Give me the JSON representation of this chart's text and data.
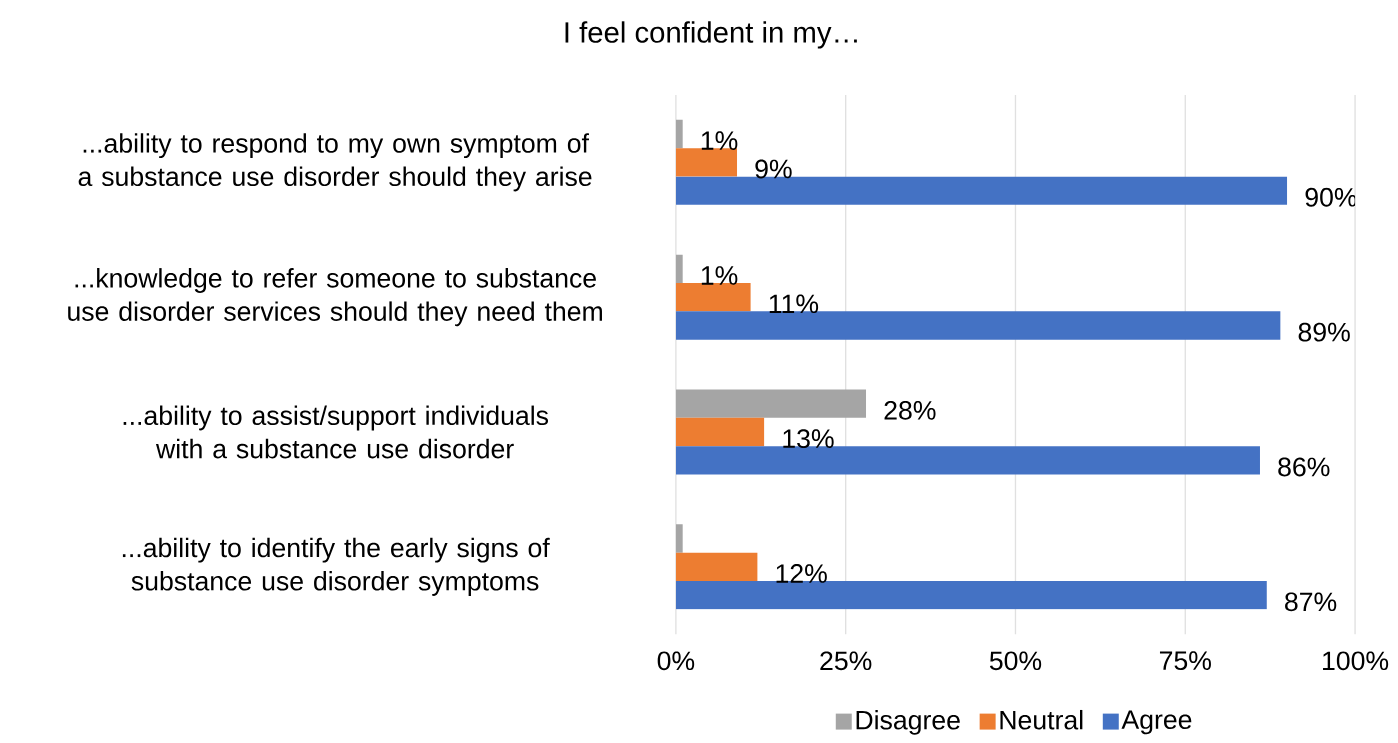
{
  "chart_data": {
    "type": "bar",
    "orientation": "horizontal",
    "title": "I feel confident in my…",
    "categories": [
      "...ability to respond to my own symptom of a substance use disorder should they arise",
      "...knowledge to refer someone to substance use disorder services should they need them",
      "...ability to assist/support individuals with a substance use disorder",
      "...ability to identify the early signs of substance use disorder symptoms"
    ],
    "series": [
      {
        "name": "Disagree",
        "color": "#a5a5a5",
        "values": [
          1,
          1,
          28,
          1
        ],
        "value_labels": [
          "1%",
          "1%",
          "28%",
          null
        ]
      },
      {
        "name": "Neutral",
        "color": "#ed7d31",
        "values": [
          9,
          11,
          13,
          12
        ],
        "value_labels": [
          "9%",
          "11%",
          "13%",
          "12%"
        ]
      },
      {
        "name": "Agree",
        "color": "#4472c4",
        "values": [
          90,
          89,
          86,
          87
        ],
        "value_labels": [
          "90%",
          "89%",
          "86%",
          "87%"
        ]
      }
    ],
    "xlim": [
      0,
      100
    ],
    "xticks": [
      {
        "value": 0,
        "label": "0%"
      },
      {
        "value": 25,
        "label": "25%"
      },
      {
        "value": 50,
        "label": "50%"
      },
      {
        "value": 75,
        "label": "75%"
      },
      {
        "value": 100,
        "label": "100%"
      }
    ],
    "grid": "x",
    "legend": "bottom"
  }
}
